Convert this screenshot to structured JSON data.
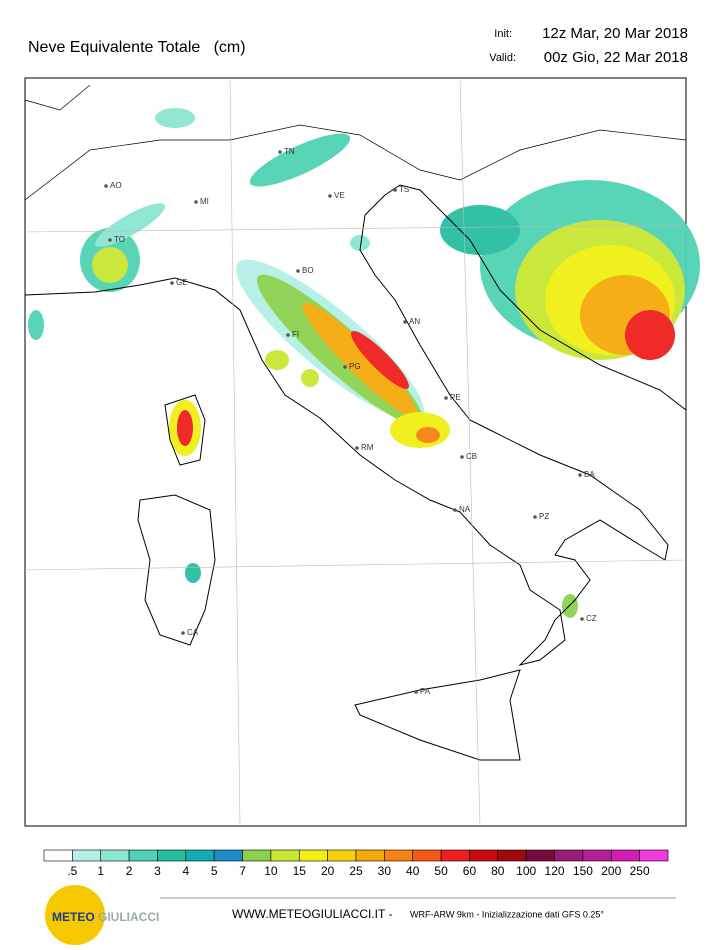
{
  "header": {
    "title": "Neve Equivalente Totale   (cm)",
    "init_label": "Init:",
    "init": "12z Mar, 20 Mar 2018",
    "valid_label": "Valid:",
    "valid": "00z Gio, 22 Mar 2018"
  },
  "cities": [
    "AO",
    "MI",
    "TN",
    "VE",
    "TS",
    "TO",
    "GE",
    "BO",
    "FI",
    "AN",
    "PG",
    "PE",
    "RM",
    "CB",
    "BA",
    "NA",
    "PZ",
    "CA",
    "CZ",
    "PA"
  ],
  "legend": {
    "labels": [
      ".5",
      "1",
      "2",
      "3",
      "4",
      "5",
      "7",
      "10",
      "15",
      "20",
      "25",
      "30",
      "40",
      "50",
      "60",
      "80",
      "100",
      "120",
      "150",
      "200",
      "250"
    ],
    "colors": [
      "#ffffff",
      "#b4f0e6",
      "#8ce6d2",
      "#50d2b4",
      "#28bea0",
      "#14aab4",
      "#1e8cc8",
      "#8cd250",
      "#c8e632",
      "#f0f014",
      "#f5d20a",
      "#f5aa0a",
      "#f58214",
      "#f55a14",
      "#f01e1e",
      "#c80a0a",
      "#a00a0a",
      "#780a3c",
      "#961e78",
      "#b41e96",
      "#d21eb4",
      "#f03cdc"
    ]
  },
  "logo": {
    "part1": "METEO",
    "part2": "GIULIACCI"
  },
  "footer": {
    "site": "WWW.METEOGIULIACCI.IT - ",
    "info": "WRF-ARW 9km - Inizializzazione dati GFS 0.25°"
  }
}
